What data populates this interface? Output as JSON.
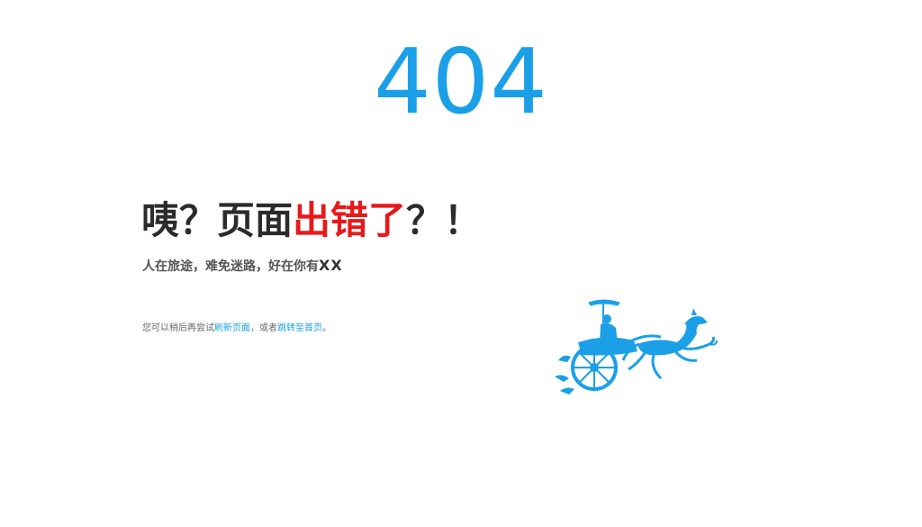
{
  "error": {
    "code": "404"
  },
  "headline": {
    "part1": "咦？页面",
    "part2": "出错了",
    "part3": "？！"
  },
  "subline": {
    "text": "人在旅途，难免迷路，好在你有",
    "suffix": "XX"
  },
  "hint": {
    "prefix": "您可以稍后再尝试",
    "refresh_link": "刷新页面",
    "middle": "，或者",
    "home_link": "跳转至首页",
    "suffix": "。"
  },
  "illustration": {
    "icon": "horse-chariot-icon"
  },
  "colors": {
    "accent": "#1ba0e8",
    "alert": "#e8191a",
    "heading": "#2b2b2b",
    "text": "#555555"
  }
}
